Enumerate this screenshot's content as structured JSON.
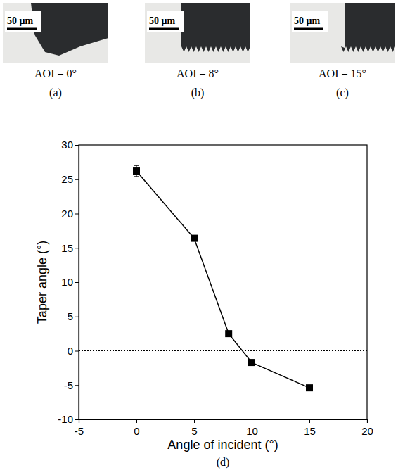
{
  "images": [
    {
      "label": "(a)",
      "caption": "AOI = 0°",
      "scale_bar": "50 μm"
    },
    {
      "label": "(b)",
      "caption": "AOI = 8°",
      "scale_bar": "50 μm"
    },
    {
      "label": "(c)",
      "caption": "AOI = 15°",
      "scale_bar": "50 μm"
    }
  ],
  "chart_data": {
    "type": "line",
    "label": "(d)",
    "x_label": "Angle of incident (°)",
    "y_label": "Taper angle (°)",
    "x": [
      0,
      5,
      8,
      10,
      15
    ],
    "values": [
      26.2,
      16.4,
      2.5,
      -1.7,
      -5.4
    ],
    "errors": [
      0.8,
      0.3,
      0.3,
      0.3,
      0.3
    ],
    "hline": 0,
    "xlim": [
      -5,
      20
    ],
    "xticks": [
      -5,
      0,
      5,
      10,
      15,
      20
    ],
    "ylim": [
      -10,
      30
    ],
    "yticks": [
      -10,
      -5,
      0,
      5,
      10,
      15,
      20,
      25,
      30
    ],
    "color": "#000000",
    "marker": "square",
    "grid": false
  }
}
